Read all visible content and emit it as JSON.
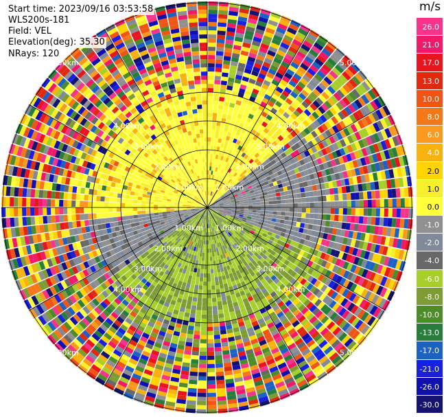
{
  "info": {
    "start_time": "Start time: 2023/09/16 03:53:58",
    "instrument": "WLS200s-181",
    "field": "Field: VEL",
    "elevation": "Elevation(deg): 35.30",
    "nrays": "NRays: 120"
  },
  "chart_data": {
    "type": "heatmap",
    "projection": "polar PPI",
    "field": "VEL",
    "unit": "m/s",
    "nrays": 120,
    "range_rings_km": [
      1.0,
      2.0,
      3.0,
      4.0,
      5.0
    ],
    "ring_labels": [
      "1.00km",
      "2.00km",
      "3.00km",
      "4.00km",
      "5.00km"
    ],
    "colorbar_ticks": [
      "26.0",
      "21.0",
      "17.0",
      "13.0",
      "10.0",
      "8.0",
      "6.0",
      "4.0",
      "2.0",
      "1.0",
      "0.0",
      "-1.0",
      "-2.0",
      "-4.0",
      "-6.0",
      "-8.0",
      "-10.0",
      "-13.0",
      "-17.0",
      "-21.0",
      "-26.0",
      "-30.0"
    ],
    "colorbar_colors": [
      "#f5348a",
      "#f4186a",
      "#e8141e",
      "#e02a10",
      "#ef5515",
      "#f57818",
      "#f99a1e",
      "#f7b20f",
      "#ffd400",
      "#f6ef2a",
      "#ffff3a",
      "#909090",
      "#808a98",
      "#686868",
      "#a6cf2c",
      "#7d9c33",
      "#4e8b2a",
      "#267d3c",
      "#1d62c2",
      "#1a20e0",
      "#1010b0",
      "#141470"
    ]
  }
}
